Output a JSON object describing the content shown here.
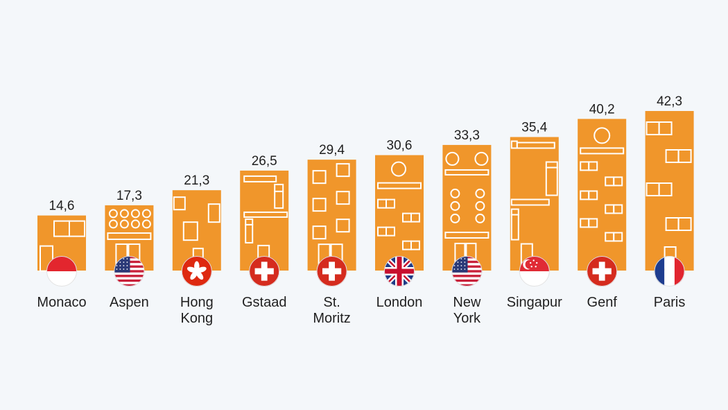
{
  "chart_data": {
    "type": "bar",
    "categories": [
      [
        "Monaco"
      ],
      [
        "Aspen"
      ],
      [
        "Hong",
        "Kong"
      ],
      [
        "Gstaad"
      ],
      [
        "St.",
        "Moritz"
      ],
      [
        "London"
      ],
      [
        "New",
        "York"
      ],
      [
        "Singapur"
      ],
      [
        "Genf"
      ],
      [
        "Paris"
      ]
    ],
    "values": [
      14.6,
      17.3,
      21.3,
      26.5,
      29.4,
      30.6,
      33.3,
      35.4,
      40.2,
      42.3
    ],
    "value_labels": [
      "14,6",
      "17,3",
      "21,3",
      "26,5",
      "29,4",
      "30,6",
      "33,3",
      "35,4",
      "40,2",
      "42,3"
    ],
    "flags": [
      "monaco",
      "usa",
      "hong-kong",
      "switzerland",
      "switzerland",
      "uk",
      "usa",
      "singapore",
      "switzerland",
      "france"
    ],
    "bar_style": "building",
    "ylim": [
      0,
      42.3
    ],
    "title": "",
    "xlabel": "",
    "ylabel": "",
    "grid": false,
    "colors": {
      "bar": "#f0962b",
      "window": "#ffffff",
      "text": "#1f1f1f",
      "background": "#f4f7fa"
    }
  }
}
